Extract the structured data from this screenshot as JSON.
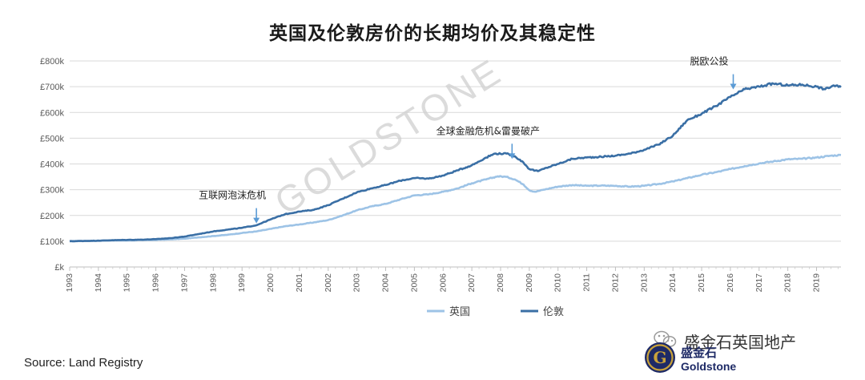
{
  "title": "英国及伦敦房价的长期均价及其稳定性",
  "source": "Source: Land Registry",
  "watermark": "GOLDSTONE",
  "brand": {
    "wechat_name": "盛金石英国地产",
    "logo_cn": "盛金石",
    "logo_en": "Goldstone",
    "logo_letter": "G"
  },
  "chart_data": {
    "type": "line",
    "title": "英国及伦敦房价的长期均价及其稳定性",
    "x_range": [
      1993,
      2019.85
    ],
    "ylim": [
      0,
      800
    ],
    "y_ticks": [
      0,
      100,
      200,
      300,
      400,
      500,
      600,
      700,
      800
    ],
    "y_tick_labels": [
      "£k",
      "£100k",
      "£200k",
      "£300k",
      "£400k",
      "£500k",
      "£600k",
      "£700k",
      "£800k"
    ],
    "x_ticks": [
      1993,
      1994,
      1995,
      1996,
      1997,
      1998,
      1999,
      2000,
      2001,
      2002,
      2003,
      2004,
      2005,
      2006,
      2007,
      2008,
      2009,
      2010,
      2011,
      2012,
      2013,
      2014,
      2015,
      2016,
      2017,
      2018,
      2019
    ],
    "x_tick_labels": [
      "1993",
      "1994",
      "1995",
      "1996",
      "1997",
      "1998",
      "1999",
      "2000",
      "2001",
      "2002",
      "2003",
      "2004",
      "2005",
      "2006",
      "2007",
      "2008",
      "2009",
      "2010",
      "2011",
      "2012",
      "2013",
      "2014",
      "2015",
      "2016",
      "2017",
      "2018",
      "2019"
    ],
    "grid": "horizontal",
    "legend_position": "bottom",
    "series": [
      {
        "name": "英国",
        "color": "#9dc3e6",
        "points": [
          [
            1993,
            100
          ],
          [
            1993.5,
            101
          ],
          [
            1994,
            102
          ],
          [
            1994.5,
            103
          ],
          [
            1995,
            103
          ],
          [
            1995.5,
            104
          ],
          [
            1996,
            105
          ],
          [
            1996.5,
            107
          ],
          [
            1997,
            110
          ],
          [
            1997.5,
            115
          ],
          [
            1998,
            120
          ],
          [
            1998.5,
            125
          ],
          [
            1999,
            132
          ],
          [
            1999.5,
            138
          ],
          [
            2000,
            148
          ],
          [
            2000.5,
            158
          ],
          [
            2001,
            165
          ],
          [
            2001.5,
            173
          ],
          [
            2002,
            182
          ],
          [
            2002.5,
            200
          ],
          [
            2003,
            220
          ],
          [
            2003.5,
            235
          ],
          [
            2004,
            245
          ],
          [
            2004.5,
            262
          ],
          [
            2005,
            278
          ],
          [
            2005.5,
            282
          ],
          [
            2006,
            292
          ],
          [
            2006.5,
            305
          ],
          [
            2007,
            325
          ],
          [
            2007.5,
            340
          ],
          [
            2007.9,
            352
          ],
          [
            2008.2,
            350
          ],
          [
            2008.5,
            340
          ],
          [
            2008.8,
            320
          ],
          [
            2009,
            298
          ],
          [
            2009.2,
            292
          ],
          [
            2009.5,
            300
          ],
          [
            2010,
            312
          ],
          [
            2010.5,
            318
          ],
          [
            2011,
            315
          ],
          [
            2011.5,
            316
          ],
          [
            2012,
            315
          ],
          [
            2012.5,
            312
          ],
          [
            2013,
            315
          ],
          [
            2013.5,
            322
          ],
          [
            2014,
            332
          ],
          [
            2014.5,
            345
          ],
          [
            2015,
            358
          ],
          [
            2015.5,
            368
          ],
          [
            2016,
            380
          ],
          [
            2016.5,
            392
          ],
          [
            2017,
            402
          ],
          [
            2017.5,
            410
          ],
          [
            2018,
            418
          ],
          [
            2018.5,
            420
          ],
          [
            2019,
            425
          ],
          [
            2019.5,
            432
          ],
          [
            2019.85,
            435
          ]
        ]
      },
      {
        "name": "伦敦",
        "color": "#3a6fa5",
        "points": [
          [
            1993,
            100
          ],
          [
            1993.5,
            101
          ],
          [
            1994,
            102
          ],
          [
            1994.5,
            104
          ],
          [
            1995,
            105
          ],
          [
            1995.5,
            106
          ],
          [
            1996,
            108
          ],
          [
            1996.5,
            112
          ],
          [
            1997,
            118
          ],
          [
            1997.5,
            128
          ],
          [
            1998,
            138
          ],
          [
            1998.5,
            145
          ],
          [
            1999,
            152
          ],
          [
            1999.5,
            162
          ],
          [
            2000,
            185
          ],
          [
            2000.5,
            205
          ],
          [
            2001,
            215
          ],
          [
            2001.5,
            222
          ],
          [
            2002,
            240
          ],
          [
            2002.5,
            265
          ],
          [
            2003,
            290
          ],
          [
            2003.5,
            305
          ],
          [
            2004,
            318
          ],
          [
            2004.5,
            335
          ],
          [
            2005,
            345
          ],
          [
            2005.5,
            343
          ],
          [
            2006,
            355
          ],
          [
            2006.5,
            375
          ],
          [
            2007,
            395
          ],
          [
            2007.5,
            425
          ],
          [
            2007.8,
            440
          ],
          [
            2008.2,
            440
          ],
          [
            2008.5,
            430
          ],
          [
            2008.8,
            405
          ],
          [
            2009,
            380
          ],
          [
            2009.3,
            372
          ],
          [
            2009.6,
            385
          ],
          [
            2010,
            400
          ],
          [
            2010.5,
            420
          ],
          [
            2011,
            425
          ],
          [
            2011.5,
            428
          ],
          [
            2012,
            432
          ],
          [
            2012.5,
            440
          ],
          [
            2013,
            455
          ],
          [
            2013.5,
            475
          ],
          [
            2014,
            510
          ],
          [
            2014.5,
            570
          ],
          [
            2015,
            595
          ],
          [
            2015.5,
            625
          ],
          [
            2016,
            660
          ],
          [
            2016.5,
            690
          ],
          [
            2017,
            700
          ],
          [
            2017.5,
            712
          ],
          [
            2018,
            705
          ],
          [
            2018.5,
            708
          ],
          [
            2019,
            700
          ],
          [
            2019.3,
            690
          ],
          [
            2019.6,
            705
          ],
          [
            2019.85,
            698
          ]
        ]
      }
    ],
    "annotations": [
      {
        "text": "互联网泡沫危机",
        "x": 1999.5,
        "y": 160
      },
      {
        "text": "全球金融危机&雷曼破产",
        "x": 2008.4,
        "y": 410
      },
      {
        "text": "脱欧公投",
        "x": 2016.1,
        "y": 680
      }
    ]
  }
}
